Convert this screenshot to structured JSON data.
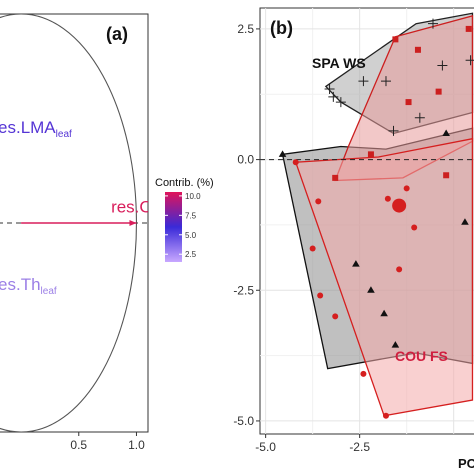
{
  "chart_data": [
    {
      "type": "scatter",
      "subtype": "pca-variable-correlation-circle",
      "panel_label": "(a)",
      "x_ticks": [
        "0.5",
        "1.0"
      ],
      "x_tick_values": [
        0.5,
        1.0
      ],
      "xlim": [
        -0.2,
        1.1
      ],
      "ylim": [
        -1.0,
        1.0
      ],
      "colorbar": {
        "title": "Contrib. (%)",
        "ticks": [
          "10.0",
          "7.5",
          "5.0",
          "2.5"
        ],
        "tick_values": [
          10.0,
          7.5,
          5.0,
          2.5
        ],
        "range": [
          1.5,
          10.5
        ],
        "colors": [
          "#c8a8ff",
          "#3a2ad8",
          "#e0145a"
        ]
      },
      "variables": [
        {
          "name": "res.LMA",
          "prefix": "e",
          "label_main": "s.LMA",
          "subscript": "leaf",
          "contrib": 4.0,
          "color": "#5535d5",
          "label_x": -0.2,
          "label_y": 0.43
        },
        {
          "name": "res.C:N",
          "label_main": "res.C:N",
          "subscript": "leaf",
          "contrib": 9.6,
          "color": "#d81e5b",
          "x": 1.0,
          "y": 0.0,
          "label_x": 0.78,
          "label_y": 0.05
        },
        {
          "name": "res.Th",
          "prefix": "e",
          "label_main": "s.Th",
          "subscript": "leaf",
          "contrib": 2.8,
          "color": "#9b7fe6",
          "label_x": -0.2,
          "label_y": -0.32
        }
      ]
    },
    {
      "type": "scatter",
      "subtype": "pca-individuals-convex-hulls",
      "panel_label": "(b)",
      "xlabel": "PC",
      "x_ticks": [
        "-5.0",
        "-2.5"
      ],
      "x_tick_values": [
        -5.0,
        -2.5
      ],
      "y_ticks": [
        "2.5",
        "0.0",
        "-2.5",
        "-5.0"
      ],
      "y_tick_values": [
        2.5,
        0.0,
        -2.5,
        -5.0
      ],
      "xlim": [
        -5.15,
        0.7
      ],
      "ylim": [
        -5.25,
        2.9
      ],
      "groups": [
        {
          "label": "SPA WS",
          "marker": "cross",
          "color": "#222222",
          "fill": "#a9a9a9",
          "hull": [
            [
              -3.4,
              1.4
            ],
            [
              -1.0,
              2.6
            ],
            [
              0.5,
              2.8
            ],
            [
              0.5,
              0.9
            ],
            [
              -1.6,
              0.5
            ],
            [
              -3.0,
              1.1
            ]
          ],
          "points": [
            [
              -3.3,
              1.35
            ],
            [
              -3.2,
              1.2
            ],
            [
              -3.0,
              1.1
            ],
            [
              -2.4,
              1.5
            ],
            [
              -1.8,
              1.5
            ],
            [
              -1.6,
              0.55
            ],
            [
              -0.55,
              2.6
            ],
            [
              -0.3,
              1.8
            ],
            [
              0.45,
              1.9
            ],
            [
              -0.9,
              0.8
            ]
          ]
        },
        {
          "label": "",
          "marker": "triangle",
          "color": "#111111",
          "fill": "#8c8c8c",
          "hull": [
            [
              -4.55,
              0.1
            ],
            [
              -3.35,
              -4.0
            ],
            [
              -1.8,
              -3.8
            ],
            [
              -1.0,
              -3.7
            ],
            [
              0.5,
              -3.9
            ],
            [
              0.5,
              0.6
            ],
            [
              -1.8,
              0.2
            ],
            [
              -3.0,
              0.25
            ]
          ],
          "points": [
            [
              -4.55,
              0.1
            ],
            [
              -2.6,
              -2.0
            ],
            [
              -2.2,
              -2.5
            ],
            [
              -1.85,
              -2.95
            ],
            [
              -1.55,
              -3.55
            ],
            [
              -0.2,
              0.5
            ],
            [
              0.3,
              -1.2
            ]
          ]
        },
        {
          "label": "",
          "marker": "square",
          "color": "#cc1f1f",
          "fill": "#e89a9a",
          "hull": [
            [
              -1.55,
              2.35
            ],
            [
              0.5,
              2.75
            ],
            [
              0.5,
              0.35
            ],
            [
              -1.35,
              -0.35
            ],
            [
              -3.15,
              -0.4
            ],
            [
              -2.8,
              0.25
            ]
          ],
          "points": [
            [
              -1.55,
              2.3
            ],
            [
              -0.95,
              2.1
            ],
            [
              0.4,
              2.5
            ],
            [
              -1.2,
              1.1
            ],
            [
              -0.4,
              1.3
            ],
            [
              -3.15,
              -0.35
            ],
            [
              -2.2,
              0.1
            ],
            [
              -0.2,
              -0.3
            ]
          ]
        },
        {
          "label": "COU FS",
          "marker": "circle",
          "color": "#d51f1f",
          "fill": "#f4a9a9",
          "hull": [
            [
              -4.2,
              -0.05
            ],
            [
              -1.85,
              -4.9
            ],
            [
              0.5,
              -4.6
            ],
            [
              0.5,
              0.4
            ],
            [
              -2.0,
              0.05
            ]
          ],
          "points": [
            [
              -4.2,
              -0.05
            ],
            [
              -3.6,
              -0.8
            ],
            [
              -3.75,
              -1.7
            ],
            [
              -3.55,
              -2.6
            ],
            [
              -3.15,
              -3.0
            ],
            [
              -2.4,
              -4.1
            ],
            [
              -1.8,
              -4.9
            ],
            [
              -1.75,
              -0.75
            ],
            [
              -1.25,
              -0.55
            ],
            [
              -1.05,
              -1.3
            ],
            [
              -1.45,
              -2.1
            ]
          ],
          "large_point": [
            -1.45,
            -0.88
          ]
        }
      ]
    }
  ]
}
